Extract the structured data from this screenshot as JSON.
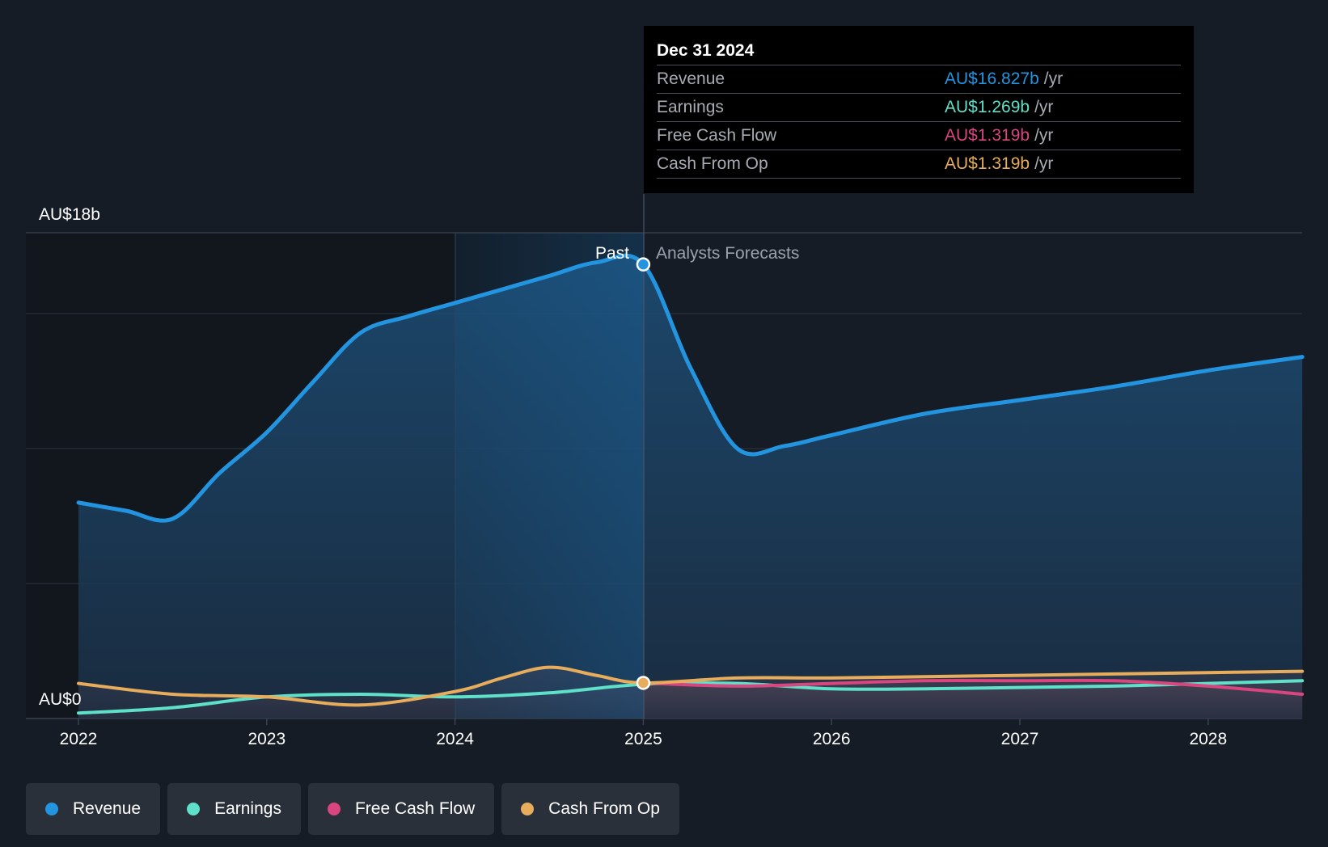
{
  "chart_data": {
    "type": "area",
    "y_axis": {
      "top_label": "AU$18b",
      "bottom_label": "AU$0",
      "ylim": [
        0,
        18
      ]
    },
    "x_ticks": [
      "2022",
      "2023",
      "2024",
      "2025",
      "2026",
      "2027",
      "2028"
    ],
    "past_label": "Past",
    "forecast_label": "Analysts Forecasts",
    "colors": {
      "revenue": "#2394e0",
      "earnings": "#5fe0c9",
      "free_cash_flow": "#d9457f",
      "cash_from_op": "#e8ad5c"
    },
    "series": [
      {
        "name": "Revenue",
        "key": "revenue",
        "points": [
          [
            2022.0,
            8.0
          ],
          [
            2022.25,
            7.7
          ],
          [
            2022.5,
            7.4
          ],
          [
            2022.75,
            9.1
          ],
          [
            2023.0,
            10.6
          ],
          [
            2023.25,
            12.5
          ],
          [
            2023.5,
            14.3
          ],
          [
            2023.75,
            14.9
          ],
          [
            2024.0,
            15.4
          ],
          [
            2024.25,
            15.9
          ],
          [
            2024.5,
            16.4
          ],
          [
            2024.75,
            16.9
          ],
          [
            2025.0,
            16.827
          ],
          [
            2025.25,
            13.0
          ],
          [
            2025.5,
            10.0
          ],
          [
            2025.75,
            10.1
          ],
          [
            2026.0,
            10.5
          ],
          [
            2026.5,
            11.3
          ],
          [
            2027.0,
            11.8
          ],
          [
            2027.5,
            12.3
          ],
          [
            2028.0,
            12.9
          ],
          [
            2028.5,
            13.4
          ]
        ]
      },
      {
        "name": "Earnings",
        "key": "earnings",
        "points": [
          [
            2022.0,
            0.2
          ],
          [
            2022.5,
            0.4
          ],
          [
            2023.0,
            0.8
          ],
          [
            2023.5,
            0.9
          ],
          [
            2024.0,
            0.8
          ],
          [
            2024.5,
            0.95
          ],
          [
            2025.0,
            1.269
          ],
          [
            2025.5,
            1.3
          ],
          [
            2026.0,
            1.1
          ],
          [
            2026.5,
            1.1
          ],
          [
            2027.0,
            1.15
          ],
          [
            2027.5,
            1.2
          ],
          [
            2028.0,
            1.3
          ],
          [
            2028.5,
            1.4
          ]
        ]
      },
      {
        "name": "Free Cash Flow",
        "key": "free_cash_flow",
        "points": [
          [
            2025.0,
            1.319
          ],
          [
            2025.5,
            1.2
          ],
          [
            2026.0,
            1.3
          ],
          [
            2026.5,
            1.4
          ],
          [
            2027.0,
            1.4
          ],
          [
            2027.5,
            1.4
          ],
          [
            2028.0,
            1.2
          ],
          [
            2028.5,
            0.9
          ]
        ]
      },
      {
        "name": "Cash From Op",
        "key": "cash_from_op",
        "points": [
          [
            2022.0,
            1.3
          ],
          [
            2022.5,
            0.9
          ],
          [
            2023.0,
            0.8
          ],
          [
            2023.5,
            0.5
          ],
          [
            2024.0,
            1.0
          ],
          [
            2024.25,
            1.5
          ],
          [
            2024.5,
            1.9
          ],
          [
            2024.75,
            1.6
          ],
          [
            2025.0,
            1.319
          ],
          [
            2025.5,
            1.5
          ],
          [
            2026.0,
            1.5
          ],
          [
            2026.5,
            1.55
          ],
          [
            2027.0,
            1.6
          ],
          [
            2027.5,
            1.65
          ],
          [
            2028.0,
            1.7
          ],
          [
            2028.5,
            1.75
          ]
        ]
      }
    ],
    "tooltip": {
      "date": "Dec 31 2024",
      "unit": "/yr",
      "rows": [
        {
          "name": "Revenue",
          "value": "AU$16.827b",
          "color": "#2394e0"
        },
        {
          "name": "Earnings",
          "value": "AU$1.269b",
          "color": "#5fe0c9"
        },
        {
          "name": "Free Cash Flow",
          "value": "AU$1.319b",
          "color": "#d9457f"
        },
        {
          "name": "Cash From Op",
          "value": "AU$1.319b",
          "color": "#e8ad5c"
        }
      ]
    },
    "legend": [
      {
        "label": "Revenue",
        "color": "#2394e0"
      },
      {
        "label": "Earnings",
        "color": "#5fe0c9"
      },
      {
        "label": "Free Cash Flow",
        "color": "#d9457f"
      },
      {
        "label": "Cash From Op",
        "color": "#e8ad5c"
      }
    ]
  }
}
